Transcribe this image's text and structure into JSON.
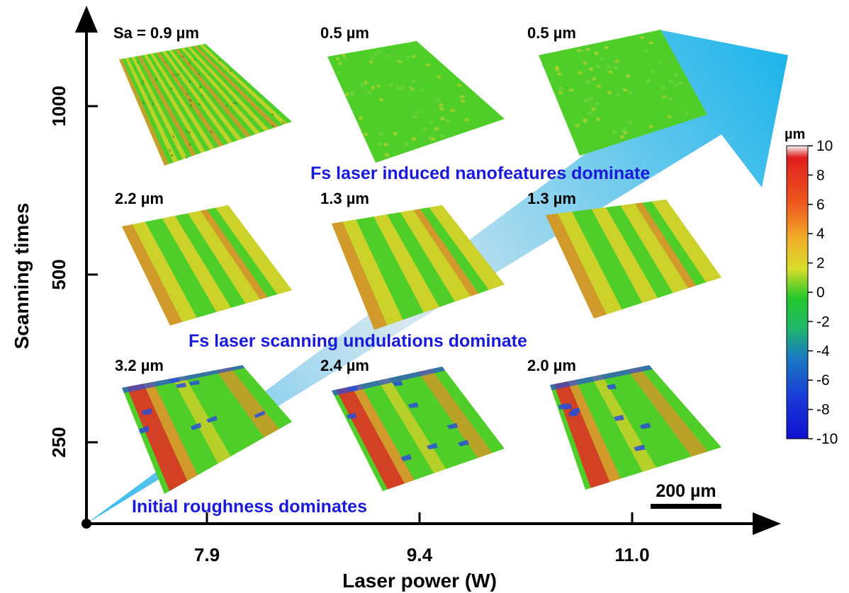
{
  "axes": {
    "x_label": "Laser power (W)",
    "y_label": "Scanning times",
    "x_ticks": [
      "7.9",
      "9.4",
      "11.0"
    ],
    "y_ticks": [
      "250",
      "500",
      "1000"
    ]
  },
  "panels": [
    {
      "row": "1000",
      "col": "7.9",
      "roughness": "Sa = 0.9 µm",
      "pattern": "stripes-fine"
    },
    {
      "row": "1000",
      "col": "9.4",
      "roughness": "0.5 µm",
      "pattern": "uniform"
    },
    {
      "row": "1000",
      "col": "11.0",
      "roughness": "0.5 µm",
      "pattern": "uniform"
    },
    {
      "row": "500",
      "col": "7.9",
      "roughness": "2.2 µm",
      "pattern": "undulation"
    },
    {
      "row": "500",
      "col": "9.4",
      "roughness": "1.3 µm",
      "pattern": "undulation"
    },
    {
      "row": "500",
      "col": "11.0",
      "roughness": "1.3 µm",
      "pattern": "undulation"
    },
    {
      "row": "250",
      "col": "7.9",
      "roughness": "3.2 µm",
      "pattern": "rough"
    },
    {
      "row": "250",
      "col": "9.4",
      "roughness": "2.4 µm",
      "pattern": "rough"
    },
    {
      "row": "250",
      "col": "11.0",
      "roughness": "2.0 µm",
      "pattern": "rough"
    }
  ],
  "annotations": {
    "top": "Fs laser induced nanofeatures dominate",
    "middle": "Fs laser scanning undulations dominate",
    "bottom": "Initial roughness dominates"
  },
  "colorbar": {
    "unit": "µm",
    "ticks": [
      "10",
      "8",
      "6",
      "4",
      "2",
      "0",
      "-2",
      "-4",
      "-6",
      "-8",
      "-10"
    ],
    "min": -10,
    "max": 10
  },
  "scale_bar": {
    "label": "200 µm"
  },
  "colors": {
    "annotation_text": "#1a1adb",
    "arrow_light": "#cfe3f0",
    "arrow_dark": "#0aaee8",
    "surface_green": "#4fce2a",
    "surface_yellow": "#e3d22a",
    "surface_orange": "#e8902a",
    "surface_red": "#e03222",
    "surface_blue": "#2a4fd6"
  }
}
